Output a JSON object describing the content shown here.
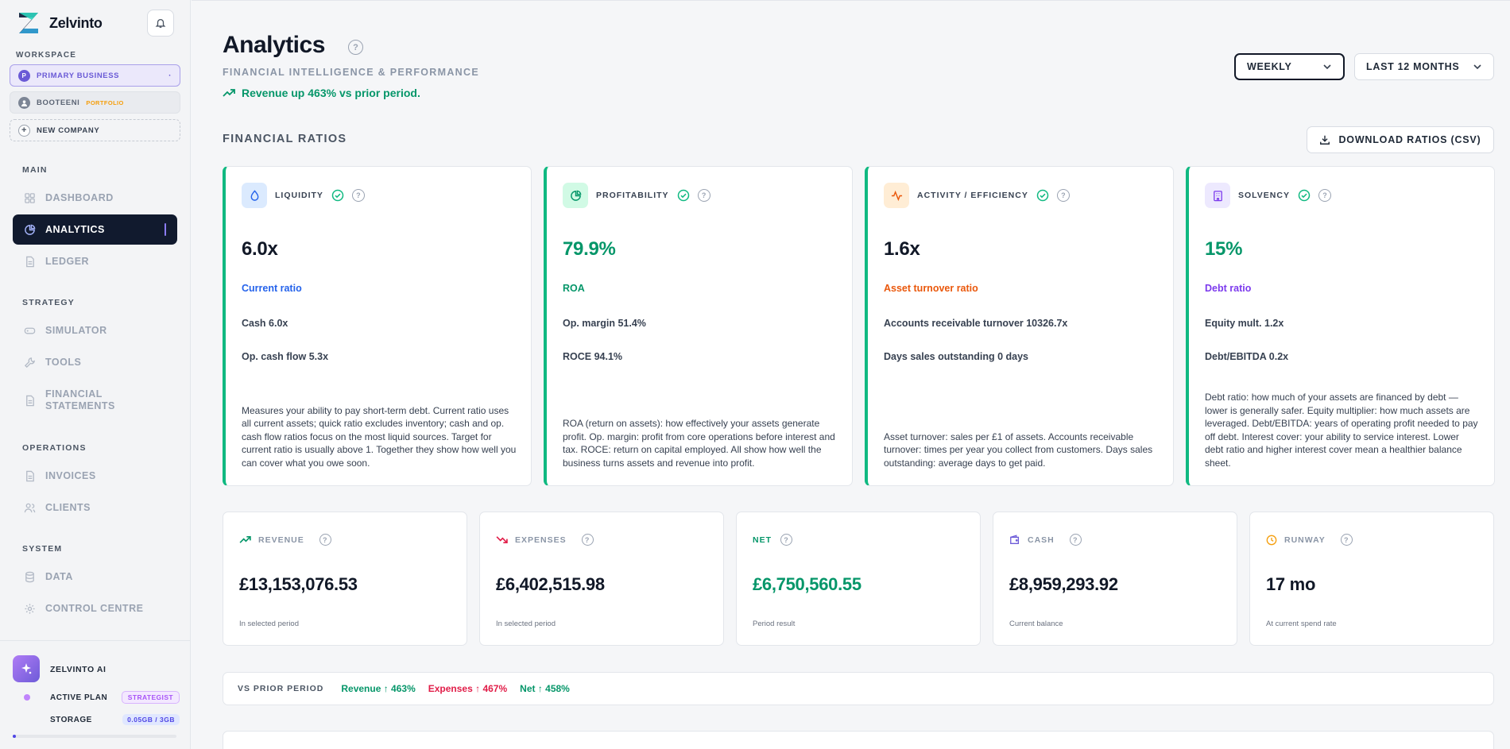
{
  "app": {
    "name": "Zelvinto"
  },
  "sidebar": {
    "workspace_label": "WORKSPACE",
    "workspaces": [
      {
        "initial": "P",
        "label": "PRIMARY BUSINESS",
        "tag": "",
        "caret": "·"
      },
      {
        "initial": "",
        "label": "BOOTEENI",
        "tag": "PORTFOLIO",
        "caret": ""
      },
      {
        "initial": "+",
        "label": "NEW COMPANY",
        "tag": "",
        "caret": ""
      }
    ],
    "sections": {
      "main": "MAIN",
      "strategy": "STRATEGY",
      "operations": "OPERATIONS",
      "system": "SYSTEM"
    },
    "nav": {
      "dashboard": "DASHBOARD",
      "analytics": "ANALYTICS",
      "ledger": "LEDGER",
      "simulator": "SIMULATOR",
      "tools": "TOOLS",
      "financial_statements_1": "FINANCIAL",
      "financial_statements_2": "STATEMENTS",
      "invoices": "INVOICES",
      "clients": "CLIENTS",
      "data": "DATA",
      "control_centre": "CONTROL CENTRE"
    },
    "active_item": "analytics",
    "ai": {
      "title": "ZELVINTO AI",
      "plan_label": "ACTIVE PLAN",
      "plan_value": "STRATEGIST",
      "storage_label": "STORAGE",
      "storage_value": "0.05GB / 3GB",
      "storage_fraction": 0.017
    }
  },
  "header": {
    "title": "Analytics",
    "help": "?",
    "subtitle": "FINANCIAL INTELLIGENCE & PERFORMANCE",
    "trend": "Revenue up 463% vs prior period.",
    "granularity": "WEEKLY",
    "period": "LAST 12 MONTHS"
  },
  "ratios": {
    "section_title": "FINANCIAL RATIOS",
    "download_label": "DOWNLOAD RATIOS (CSV)",
    "cards": [
      {
        "title": "LIQUIDITY",
        "value": "6.0x",
        "metric": "Current ratio",
        "line1": "Cash 6.0x",
        "line2": "Op. cash flow 5.3x",
        "description": "Measures your ability to pay short-term debt. Current ratio uses all current assets; quick ratio excludes inventory; cash and op. cash flow ratios focus on the most liquid sources. Target for current ratio is usually above 1. Together they show how well you can cover what you owe soon.",
        "value_color": "#111827",
        "metric_color": "#2563eb"
      },
      {
        "title": "PROFITABILITY",
        "value": "79.9%",
        "metric": "ROA",
        "line1": "Op. margin 51.4%",
        "line2": "ROCE 94.1%",
        "description": "ROA (return on assets): how effectively your assets generate profit. Op. margin: profit from core operations before interest and tax. ROCE: return on capital employed. All show how well the business turns assets and revenue into profit.",
        "value_color": "#059669",
        "metric_color": "#059669"
      },
      {
        "title": "ACTIVITY / EFFICIENCY",
        "value": "1.6x",
        "metric": "Asset turnover ratio",
        "line1": "Accounts receivable turnover 10326.7x",
        "line2": "Days sales outstanding 0 days",
        "description": "Asset turnover: sales per £1 of assets. Accounts receivable turnover: times per year you collect from customers. Days sales outstanding: average days to get paid.",
        "value_color": "#111827",
        "metric_color": "#ea580c"
      },
      {
        "title": "SOLVENCY",
        "value": "15%",
        "metric": "Debt ratio",
        "line1": "Equity mult. 1.2x",
        "line2": "Debt/EBITDA 0.2x",
        "description": "Debt ratio: how much of your assets are financed by debt — lower is generally safer. Equity multiplier: how much assets are leveraged. Debt/EBITDA: years of operating profit needed to pay off debt. Interest cover: your ability to service interest. Lower debt ratio and higher interest cover mean a healthier balance sheet.",
        "value_color": "#059669",
        "metric_color": "#7c3aed"
      }
    ]
  },
  "kpis": [
    {
      "label": "REVENUE",
      "value": "£13,153,076.53",
      "sub": "In selected period",
      "value_color": "#111827",
      "label_color": "#8a95a6"
    },
    {
      "label": "EXPENSES",
      "value": "£6,402,515.98",
      "sub": "In selected period",
      "value_color": "#111827",
      "label_color": "#8a95a6"
    },
    {
      "label": "NET",
      "value": "£6,750,560.55",
      "sub": "Period result",
      "value_color": "#059669",
      "label_color": "#059669"
    },
    {
      "label": "CASH",
      "value": "£8,959,293.92",
      "sub": "Current balance",
      "value_color": "#111827",
      "label_color": "#8a95a6"
    },
    {
      "label": "RUNWAY",
      "value": "17 mo",
      "sub": "At current spend rate",
      "value_color": "#111827",
      "label_color": "#8a95a6"
    }
  ],
  "prior": {
    "label": "VS PRIOR PERIOD",
    "revenue": "Revenue ↑ 463%",
    "expenses": "Expenses ↑ 467%",
    "net": "Net ↑ 458%"
  },
  "colors": {
    "accent": "#6a5ad6",
    "positive": "#059669",
    "negative": "#e11d48",
    "nav_active_bg": "#111a2e"
  }
}
